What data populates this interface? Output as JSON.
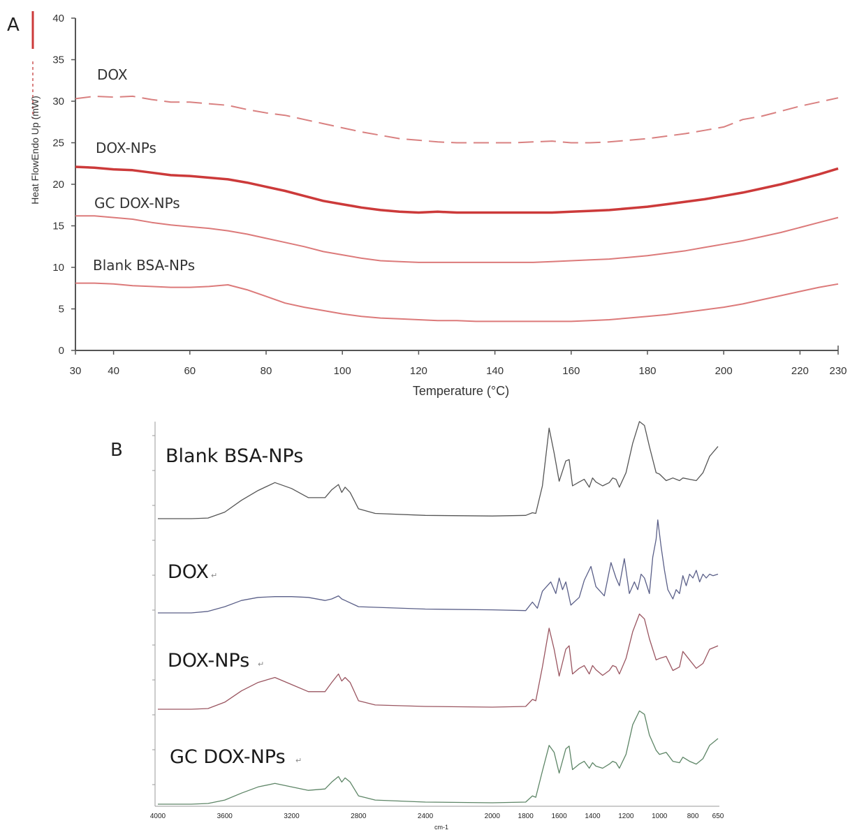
{
  "panels": {
    "a_label": "A",
    "b_label": "B"
  },
  "chart_data": [
    {
      "type": "line",
      "panel": "A",
      "xlabel": "Temperature (°C)",
      "ylabel": "Heat FlowEndo Up (mW)",
      "xlim": [
        30,
        230
      ],
      "ylim": [
        0,
        40
      ],
      "xticks": [
        30,
        40,
        60,
        80,
        100,
        120,
        140,
        160,
        180,
        200,
        220,
        230
      ],
      "yticks": [
        0,
        5,
        10,
        15,
        20,
        25,
        30,
        35,
        40
      ],
      "grid": false,
      "colors": {
        "dox": "#d98080",
        "dox_nps": "#cc3a3a",
        "gc_dox_nps": "#dc7a7a",
        "blank": "#dc7a7a",
        "axis": "#555555"
      },
      "series": [
        {
          "name": "DOX",
          "style": "dashed",
          "x": [
            30,
            35,
            40,
            45,
            50,
            55,
            60,
            65,
            70,
            75,
            80,
            85,
            90,
            95,
            100,
            105,
            110,
            115,
            120,
            125,
            130,
            135,
            140,
            145,
            150,
            155,
            160,
            165,
            170,
            175,
            180,
            185,
            190,
            195,
            200,
            205,
            210,
            215,
            220,
            225,
            230
          ],
          "y": [
            30.3,
            30.6,
            30.5,
            30.6,
            30.2,
            29.9,
            29.9,
            29.7,
            29.5,
            29.0,
            28.6,
            28.3,
            27.8,
            27.3,
            26.8,
            26.3,
            25.9,
            25.5,
            25.3,
            25.1,
            25.0,
            25.0,
            25.0,
            25.0,
            25.1,
            25.2,
            25.0,
            25.0,
            25.1,
            25.3,
            25.5,
            25.8,
            26.1,
            26.5,
            26.9,
            27.8,
            28.2,
            28.8,
            29.4,
            29.9,
            30.4
          ]
        },
        {
          "name": "DOX-NPs",
          "style": "thick",
          "x": [
            30,
            35,
            40,
            45,
            50,
            55,
            60,
            65,
            70,
            75,
            80,
            85,
            90,
            95,
            100,
            105,
            110,
            115,
            120,
            125,
            130,
            135,
            140,
            145,
            150,
            155,
            160,
            165,
            170,
            175,
            180,
            185,
            190,
            195,
            200,
            205,
            210,
            215,
            220,
            225,
            230
          ],
          "y": [
            22.1,
            22.0,
            21.8,
            21.7,
            21.4,
            21.1,
            21.0,
            20.8,
            20.6,
            20.2,
            19.7,
            19.2,
            18.6,
            18.0,
            17.6,
            17.2,
            16.9,
            16.7,
            16.6,
            16.7,
            16.6,
            16.6,
            16.6,
            16.6,
            16.6,
            16.6,
            16.7,
            16.8,
            16.9,
            17.1,
            17.3,
            17.6,
            17.9,
            18.2,
            18.6,
            19.0,
            19.5,
            20.0,
            20.6,
            21.2,
            21.9
          ]
        },
        {
          "name": "GC DOX-NPs",
          "style": "solid",
          "x": [
            30,
            35,
            40,
            45,
            50,
            55,
            60,
            65,
            70,
            75,
            80,
            85,
            90,
            95,
            100,
            105,
            110,
            115,
            120,
            125,
            130,
            135,
            140,
            145,
            150,
            155,
            160,
            165,
            170,
            175,
            180,
            185,
            190,
            195,
            200,
            205,
            210,
            215,
            220,
            225,
            230
          ],
          "y": [
            16.2,
            16.2,
            16.0,
            15.8,
            15.4,
            15.1,
            14.9,
            14.7,
            14.4,
            14.0,
            13.5,
            13.0,
            12.5,
            11.9,
            11.5,
            11.1,
            10.8,
            10.7,
            10.6,
            10.6,
            10.6,
            10.6,
            10.6,
            10.6,
            10.6,
            10.7,
            10.8,
            10.9,
            11.0,
            11.2,
            11.4,
            11.7,
            12.0,
            12.4,
            12.8,
            13.2,
            13.7,
            14.2,
            14.8,
            15.4,
            16.0
          ]
        },
        {
          "name": "Blank BSA-NPs",
          "style": "solid",
          "x": [
            30,
            35,
            40,
            45,
            50,
            55,
            60,
            65,
            70,
            75,
            80,
            85,
            90,
            95,
            100,
            105,
            110,
            115,
            120,
            125,
            130,
            135,
            140,
            145,
            150,
            155,
            160,
            165,
            170,
            175,
            180,
            185,
            190,
            195,
            200,
            205,
            210,
            215,
            220,
            225,
            230
          ],
          "y": [
            8.1,
            8.1,
            8.0,
            7.8,
            7.7,
            7.6,
            7.6,
            7.7,
            7.9,
            7.3,
            6.5,
            5.7,
            5.2,
            4.8,
            4.4,
            4.1,
            3.9,
            3.8,
            3.7,
            3.6,
            3.6,
            3.5,
            3.5,
            3.5,
            3.5,
            3.5,
            3.5,
            3.6,
            3.7,
            3.9,
            4.1,
            4.3,
            4.6,
            4.9,
            5.2,
            5.6,
            6.1,
            6.6,
            7.1,
            7.6,
            8.0
          ]
        }
      ]
    },
    {
      "type": "line",
      "panel": "B",
      "xlabel": "cm-1",
      "xlim": [
        4000,
        650
      ],
      "xticks": [
        4000,
        3600,
        3200,
        2800,
        2400,
        2000,
        1800,
        1600,
        1400,
        1200,
        1000,
        800,
        650
      ],
      "grid": false,
      "colors": {
        "blank": "#555555",
        "dox": "#5a5f88",
        "dox_nps": "#9a5560",
        "gc_dox_nps": "#5d8566"
      },
      "series": [
        {
          "name": "Blank BSA-NPs",
          "x": [
            4000,
            3800,
            3700,
            3600,
            3500,
            3400,
            3300,
            3200,
            3100,
            3000,
            2960,
            2920,
            2900,
            2880,
            2850,
            2800,
            2700,
            2400,
            2000,
            1800,
            1760,
            1740,
            1700,
            1660,
            1630,
            1600,
            1560,
            1540,
            1520,
            1480,
            1450,
            1420,
            1400,
            1380,
            1340,
            1300,
            1280,
            1260,
            1240,
            1200,
            1160,
            1120,
            1090,
            1060,
            1020,
            1000,
            960,
            920,
            880,
            860,
            820,
            780,
            740,
            700,
            650
          ],
          "y": [
            0,
            0,
            1,
            10,
            28,
            43,
            55,
            46,
            32,
            32,
            44,
            52,
            40,
            48,
            40,
            15,
            8,
            5,
            4,
            5,
            9,
            8,
            50,
            138,
            100,
            57,
            88,
            90,
            50,
            56,
            60,
            48,
            62,
            56,
            50,
            55,
            62,
            60,
            48,
            70,
            115,
            148,
            142,
            110,
            70,
            68,
            58,
            62,
            58,
            62,
            60,
            58,
            70,
            95,
            110
          ]
        },
        {
          "name": "DOX",
          "x": [
            4000,
            3800,
            3700,
            3600,
            3500,
            3400,
            3300,
            3200,
            3100,
            3000,
            2960,
            2920,
            2900,
            2880,
            2800,
            2400,
            2000,
            1800,
            1760,
            1730,
            1700,
            1650,
            1620,
            1600,
            1580,
            1560,
            1530,
            1480,
            1450,
            1410,
            1380,
            1330,
            1290,
            1260,
            1240,
            1210,
            1180,
            1150,
            1130,
            1110,
            1090,
            1060,
            1040,
            1020,
            1010,
            990,
            970,
            950,
            920,
            900,
            880,
            860,
            840,
            820,
            800,
            780,
            760,
            740,
            720,
            700,
            680,
            650
          ],
          "y": [
            0,
            0,
            2,
            8,
            16,
            20,
            21,
            21,
            20,
            16,
            18,
            22,
            18,
            16,
            8,
            5,
            4,
            3,
            14,
            6,
            28,
            40,
            25,
            45,
            30,
            40,
            10,
            20,
            42,
            60,
            34,
            22,
            65,
            45,
            35,
            70,
            25,
            40,
            30,
            50,
            45,
            25,
            72,
            95,
            120,
            85,
            55,
            30,
            18,
            30,
            25,
            48,
            35,
            50,
            45,
            55,
            40,
            50,
            45,
            50,
            48,
            50
          ]
        },
        {
          "name": "DOX-NPs",
          "x": [
            4000,
            3800,
            3700,
            3600,
            3500,
            3400,
            3300,
            3200,
            3100,
            3000,
            2960,
            2920,
            2900,
            2880,
            2850,
            2800,
            2700,
            2400,
            2000,
            1800,
            1760,
            1740,
            1700,
            1660,
            1630,
            1600,
            1560,
            1540,
            1520,
            1480,
            1450,
            1420,
            1400,
            1380,
            1340,
            1300,
            1280,
            1260,
            1240,
            1200,
            1160,
            1120,
            1090,
            1060,
            1020,
            1000,
            960,
            920,
            880,
            860,
            820,
            780,
            740,
            700,
            650
          ],
          "y": [
            0,
            0,
            1,
            10,
            26,
            38,
            45,
            35,
            25,
            25,
            38,
            50,
            40,
            45,
            38,
            12,
            6,
            4,
            3,
            4,
            14,
            12,
            60,
            115,
            85,
            47,
            85,
            90,
            50,
            58,
            62,
            50,
            62,
            56,
            48,
            55,
            62,
            60,
            50,
            72,
            110,
            135,
            128,
            100,
            70,
            72,
            75,
            55,
            60,
            82,
            70,
            58,
            65,
            85,
            90
          ]
        },
        {
          "name": "GC DOX-NPs",
          "x": [
            4000,
            3800,
            3700,
            3600,
            3500,
            3400,
            3300,
            3200,
            3100,
            3000,
            2960,
            2920,
            2900,
            2880,
            2850,
            2800,
            2700,
            2400,
            2000,
            1800,
            1760,
            1740,
            1700,
            1660,
            1630,
            1600,
            1560,
            1540,
            1520,
            1480,
            1450,
            1420,
            1400,
            1380,
            1340,
            1300,
            1280,
            1260,
            1240,
            1200,
            1160,
            1120,
            1090,
            1060,
            1020,
            1000,
            960,
            920,
            880,
            860,
            820,
            780,
            740,
            700,
            650
          ],
          "y": [
            0,
            0,
            1,
            6,
            16,
            25,
            30,
            25,
            20,
            22,
            32,
            40,
            32,
            38,
            32,
            12,
            6,
            3,
            2,
            3,
            12,
            10,
            48,
            85,
            75,
            45,
            80,
            84,
            50,
            58,
            62,
            52,
            60,
            55,
            52,
            58,
            62,
            60,
            52,
            72,
            115,
            135,
            130,
            100,
            78,
            72,
            75,
            62,
            60,
            68,
            62,
            58,
            66,
            85,
            95
          ]
        }
      ]
    }
  ],
  "labelsB_extra": {
    "para_mark": "↵"
  }
}
